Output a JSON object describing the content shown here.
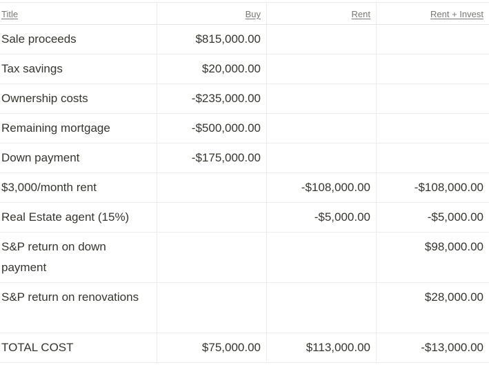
{
  "columns": {
    "title": "Title",
    "buy": "Buy",
    "rent": "Rent",
    "rent_invest": "Rent + Invest"
  },
  "rows": [
    {
      "title": "Sale proceeds",
      "buy": "$815,000.00",
      "rent": "",
      "rent_invest": ""
    },
    {
      "title": "Tax savings",
      "buy": "$20,000.00",
      "rent": "",
      "rent_invest": ""
    },
    {
      "title": "Ownership costs",
      "buy": "-$235,000.00",
      "rent": "",
      "rent_invest": ""
    },
    {
      "title": "Remaining mortgage",
      "buy": "-$500,000.00",
      "rent": "",
      "rent_invest": ""
    },
    {
      "title": "Down payment",
      "buy": "-$175,000.00",
      "rent": "",
      "rent_invest": ""
    },
    {
      "title": "$3,000/month rent",
      "buy": "",
      "rent": "-$108,000.00",
      "rent_invest": "-$108,000.00"
    },
    {
      "title": "Real Estate agent (15%)",
      "buy": "",
      "rent": "-$5,000.00",
      "rent_invest": "-$5,000.00"
    },
    {
      "title": "S&P return on down payment",
      "buy": "",
      "rent": "",
      "rent_invest": "$98,000.00"
    },
    {
      "title": "S&P return on renovations",
      "buy": "",
      "rent": "",
      "rent_invest": "$28,000.00"
    },
    {
      "title": "TOTAL COST",
      "buy": "$75,000.00",
      "rent": "$113,000.00",
      "rent_invest": "-$13,000.00"
    }
  ]
}
